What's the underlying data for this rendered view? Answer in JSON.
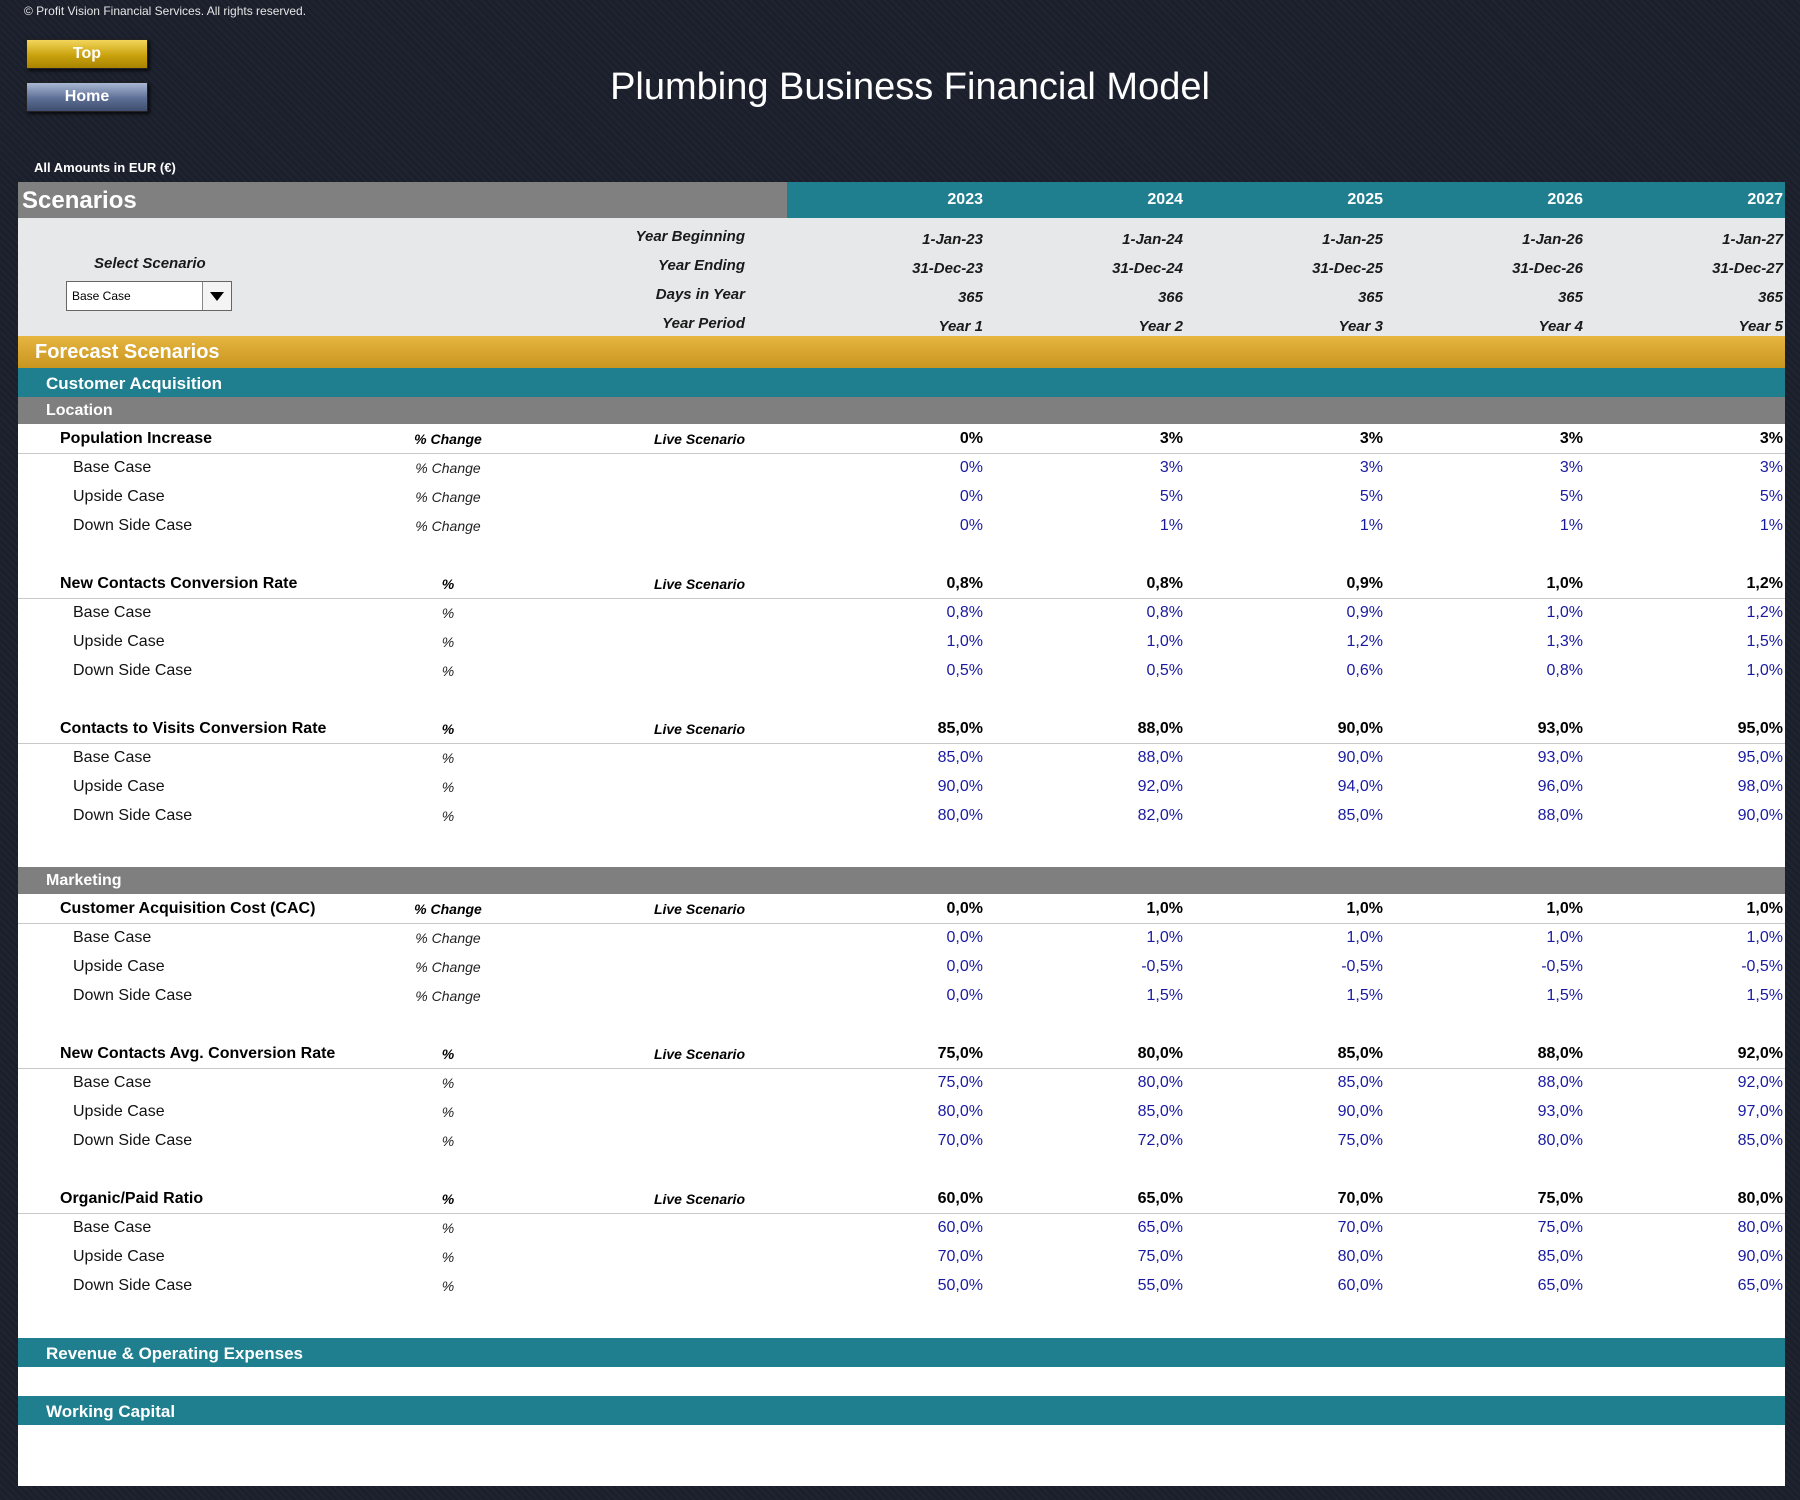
{
  "copyright": "© Profit Vision Financial Services. All rights reserved.",
  "nav": {
    "top_label": "Top",
    "home_label": "Home"
  },
  "title": "Plumbing Business Financial Model",
  "amounts_label": "All Amounts in  EUR (€)",
  "scenarios_title": "Scenarios",
  "years": [
    "2023",
    "2024",
    "2025",
    "2026",
    "2027"
  ],
  "info": {
    "select_label": "Select Scenario",
    "selected_scenario": "Base Case",
    "rows": [
      {
        "label": "Year Beginning",
        "values": [
          "1-Jan-23",
          "1-Jan-24",
          "1-Jan-25",
          "1-Jan-26",
          "1-Jan-27"
        ]
      },
      {
        "label": "Year Ending",
        "values": [
          "31-Dec-23",
          "31-Dec-24",
          "31-Dec-25",
          "31-Dec-26",
          "31-Dec-27"
        ]
      },
      {
        "label": "Days in Year",
        "values": [
          "365",
          "366",
          "365",
          "365",
          "365"
        ]
      },
      {
        "label": "Year Period",
        "values": [
          "Year 1",
          "Year 2",
          "Year 3",
          "Year 4",
          "Year 5"
        ]
      }
    ]
  },
  "forecast_title": "Forecast Scenarios",
  "customer_acquisition_title": "Customer Acquisition",
  "location_title": "Location",
  "marketing_title": "Marketing",
  "live_label": "Live Scenario",
  "location_groups": [
    {
      "name": "Population Increase",
      "unit": "% Change",
      "live": [
        "0%",
        "3%",
        "3%",
        "3%",
        "3%"
      ],
      "cases": [
        {
          "name": "Base Case",
          "unit": "% Change",
          "values": [
            "0%",
            "3%",
            "3%",
            "3%",
            "3%"
          ]
        },
        {
          "name": "Upside Case",
          "unit": "% Change",
          "values": [
            "0%",
            "5%",
            "5%",
            "5%",
            "5%"
          ]
        },
        {
          "name": "Down Side Case",
          "unit": "% Change",
          "values": [
            "0%",
            "1%",
            "1%",
            "1%",
            "1%"
          ]
        }
      ]
    },
    {
      "name": "New Contacts Conversion Rate",
      "unit": "%",
      "live": [
        "0,8%",
        "0,8%",
        "0,9%",
        "1,0%",
        "1,2%"
      ],
      "cases": [
        {
          "name": "Base Case",
          "unit": "%",
          "values": [
            "0,8%",
            "0,8%",
            "0,9%",
            "1,0%",
            "1,2%"
          ]
        },
        {
          "name": "Upside Case",
          "unit": "%",
          "values": [
            "1,0%",
            "1,0%",
            "1,2%",
            "1,3%",
            "1,5%"
          ]
        },
        {
          "name": "Down Side Case",
          "unit": "%",
          "values": [
            "0,5%",
            "0,5%",
            "0,6%",
            "0,8%",
            "1,0%"
          ]
        }
      ]
    },
    {
      "name": "Contacts to Visits Conversion Rate",
      "unit": "%",
      "live": [
        "85,0%",
        "88,0%",
        "90,0%",
        "93,0%",
        "95,0%"
      ],
      "cases": [
        {
          "name": "Base Case",
          "unit": "%",
          "values": [
            "85,0%",
            "88,0%",
            "90,0%",
            "93,0%",
            "95,0%"
          ]
        },
        {
          "name": "Upside Case",
          "unit": "%",
          "values": [
            "90,0%",
            "92,0%",
            "94,0%",
            "96,0%",
            "98,0%"
          ]
        },
        {
          "name": "Down Side Case",
          "unit": "%",
          "values": [
            "80,0%",
            "82,0%",
            "85,0%",
            "88,0%",
            "90,0%"
          ]
        }
      ]
    }
  ],
  "marketing_groups": [
    {
      "name": "Customer Acquisition Cost (CAC)",
      "unit": "% Change",
      "live": [
        "0,0%",
        "1,0%",
        "1,0%",
        "1,0%",
        "1,0%"
      ],
      "cases": [
        {
          "name": "Base Case",
          "unit": "% Change",
          "values": [
            "0,0%",
            "1,0%",
            "1,0%",
            "1,0%",
            "1,0%"
          ]
        },
        {
          "name": "Upside Case",
          "unit": "% Change",
          "values": [
            "0,0%",
            "-0,5%",
            "-0,5%",
            "-0,5%",
            "-0,5%"
          ]
        },
        {
          "name": "Down Side Case",
          "unit": "% Change",
          "values": [
            "0,0%",
            "1,5%",
            "1,5%",
            "1,5%",
            "1,5%"
          ]
        }
      ]
    },
    {
      "name": "New Contacts Avg. Conversion Rate",
      "unit": "%",
      "live": [
        "75,0%",
        "80,0%",
        "85,0%",
        "88,0%",
        "92,0%"
      ],
      "cases": [
        {
          "name": "Base Case",
          "unit": "%",
          "values": [
            "75,0%",
            "80,0%",
            "85,0%",
            "88,0%",
            "92,0%"
          ]
        },
        {
          "name": "Upside Case",
          "unit": "%",
          "values": [
            "80,0%",
            "85,0%",
            "90,0%",
            "93,0%",
            "97,0%"
          ]
        },
        {
          "name": "Down Side Case",
          "unit": "%",
          "values": [
            "70,0%",
            "72,0%",
            "75,0%",
            "80,0%",
            "85,0%"
          ]
        }
      ]
    },
    {
      "name": "Organic/Paid Ratio",
      "unit": "%",
      "live": [
        "60,0%",
        "65,0%",
        "70,0%",
        "75,0%",
        "80,0%"
      ],
      "cases": [
        {
          "name": "Base Case",
          "unit": "%",
          "values": [
            "60,0%",
            "65,0%",
            "70,0%",
            "75,0%",
            "80,0%"
          ]
        },
        {
          "name": "Upside Case",
          "unit": "%",
          "values": [
            "70,0%",
            "75,0%",
            "80,0%",
            "85,0%",
            "90,0%"
          ]
        },
        {
          "name": "Down Side Case",
          "unit": "%",
          "values": [
            "50,0%",
            "55,0%",
            "60,0%",
            "65,0%",
            "65,0%"
          ]
        }
      ]
    }
  ],
  "revenue_title": "Revenue & Operating Expenses",
  "working_capital_title": "Working Capital"
}
